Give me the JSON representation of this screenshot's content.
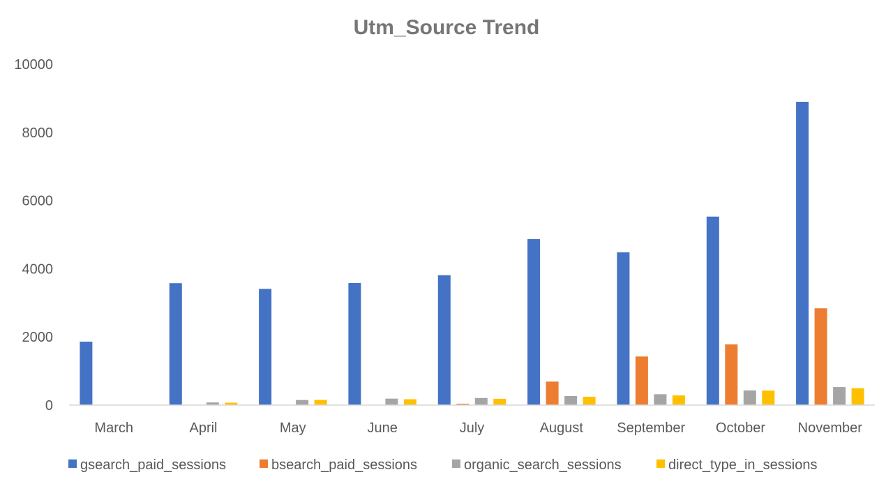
{
  "chart_data": {
    "type": "bar",
    "title": "Utm_Source Trend",
    "xlabel": "",
    "ylabel": "",
    "categories": [
      "March",
      "April",
      "May",
      "June",
      "July",
      "August",
      "September",
      "October",
      "November"
    ],
    "ylim": [
      0,
      10000
    ],
    "yticks": [
      0,
      2000,
      4000,
      6000,
      8000,
      10000
    ],
    "ytick_labels": [
      "0",
      "2000",
      "4000",
      "6000",
      "8000",
      "10000"
    ],
    "grid": false,
    "legend_position": "bottom",
    "series": [
      {
        "name": "gsearch_paid_sessions",
        "color": "#4472C4",
        "values": [
          1860,
          3574,
          3410,
          3578,
          3810,
          4867,
          4483,
          5527,
          8895
        ]
      },
      {
        "name": "bsearch_paid_sessions",
        "color": "#ED7D31",
        "values": [
          2,
          6,
          7,
          7,
          41,
          689,
          1425,
          1781,
          2838
        ]
      },
      {
        "name": "organic_search_sessions",
        "color": "#A5A5A5",
        "values": [
          8,
          78,
          150,
          190,
          208,
          265,
          320,
          430,
          530
        ]
      },
      {
        "name": "direct_type_in_sessions",
        "color": "#FFC000",
        "values": [
          9,
          71,
          151,
          171,
          186,
          246,
          284,
          426,
          492
        ]
      }
    ]
  }
}
